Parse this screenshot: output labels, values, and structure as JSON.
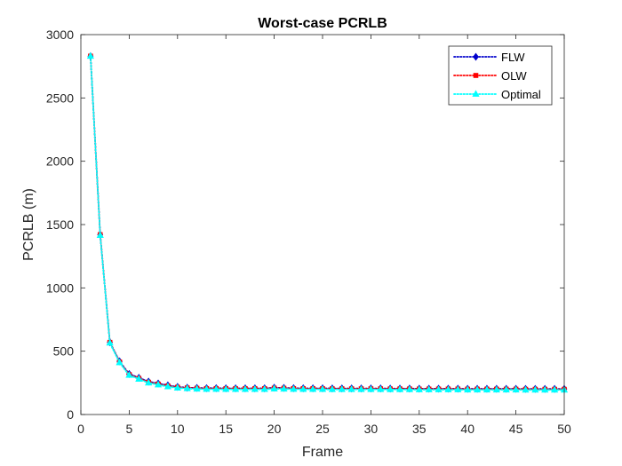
{
  "chart_data": {
    "type": "line",
    "title": "Worst-case PCRLB",
    "xlabel": "Frame",
    "ylabel": "PCRLB (m)",
    "xlim": [
      0,
      50
    ],
    "ylim": [
      0,
      3000
    ],
    "xticks": [
      0,
      5,
      10,
      15,
      20,
      25,
      30,
      35,
      40,
      45,
      50
    ],
    "yticks": [
      0,
      500,
      1000,
      1500,
      2000,
      2500,
      3000
    ],
    "grid": false,
    "legend_position": "top-right",
    "x": [
      1,
      2,
      3,
      4,
      5,
      6,
      7,
      8,
      9,
      10,
      11,
      12,
      13,
      14,
      15,
      16,
      17,
      18,
      19,
      20,
      21,
      22,
      23,
      24,
      25,
      26,
      27,
      28,
      29,
      30,
      31,
      32,
      33,
      34,
      35,
      36,
      37,
      38,
      39,
      40,
      41,
      42,
      43,
      44,
      45,
      46,
      47,
      48,
      49,
      50
    ],
    "series": [
      {
        "name": "FLW",
        "color": "#0000cc",
        "line_style": "dotted",
        "marker": "diamond",
        "values": [
          2830,
          1420,
          570,
          420,
          320,
          290,
          260,
          245,
          230,
          218,
          212,
          210,
          208,
          208,
          207,
          207,
          207,
          207,
          207,
          212,
          210,
          208,
          207,
          207,
          207,
          206,
          206,
          206,
          206,
          206,
          206,
          205,
          205,
          205,
          204,
          204,
          204,
          204,
          204,
          203,
          203,
          203,
          203,
          203,
          203,
          202,
          202,
          202,
          202,
          202
        ]
      },
      {
        "name": "OLW",
        "color": "#ff0000",
        "line_style": "dotted",
        "marker": "square",
        "values": [
          2830,
          1420,
          570,
          415,
          315,
          285,
          255,
          240,
          225,
          215,
          210,
          207,
          205,
          205,
          204,
          204,
          204,
          204,
          204,
          208,
          207,
          205,
          204,
          204,
          204,
          203,
          203,
          203,
          203,
          203,
          203,
          202,
          202,
          202,
          201,
          201,
          201,
          201,
          201,
          200,
          200,
          200,
          200,
          200,
          200,
          199,
          199,
          199,
          199,
          199
        ]
      },
      {
        "name": "Optimal",
        "color": "#00ffff",
        "line_style": "dotted",
        "marker": "triangle",
        "values": [
          2830,
          1415,
          565,
          410,
          310,
          280,
          250,
          235,
          220,
          210,
          205,
          202,
          200,
          200,
          199,
          199,
          199,
          199,
          199,
          203,
          202,
          200,
          199,
          199,
          199,
          198,
          198,
          198,
          198,
          198,
          198,
          197,
          197,
          197,
          196,
          196,
          196,
          196,
          196,
          195,
          195,
          195,
          195,
          195,
          195,
          194,
          194,
          194,
          194,
          194
        ]
      }
    ]
  }
}
